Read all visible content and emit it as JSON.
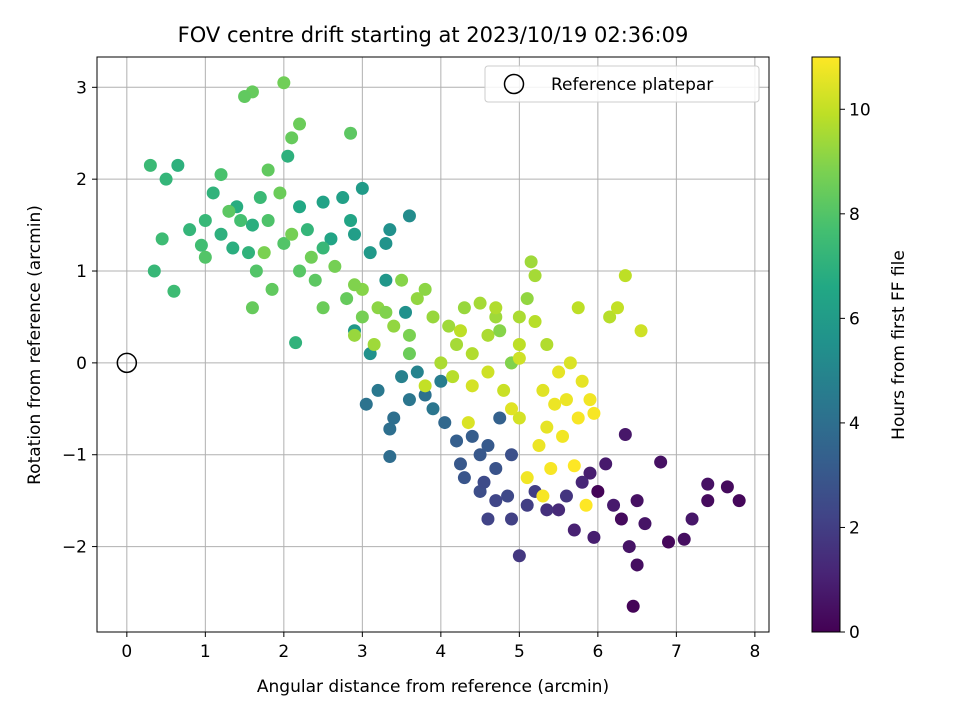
{
  "chart_data": {
    "type": "scatter",
    "title": "FOV centre drift starting at 2023/10/19 02:36:09",
    "xlabel": "Angular distance from reference (arcmin)",
    "ylabel": "Rotation from reference (arcmin)",
    "xlim": [
      -0.38,
      8.18
    ],
    "ylim": [
      -2.93,
      3.33
    ],
    "x_ticks": [
      0,
      1,
      2,
      3,
      4,
      5,
      6,
      7,
      8
    ],
    "y_ticks": [
      -2,
      -1,
      0,
      1,
      2,
      3
    ],
    "grid": true,
    "legend": {
      "placement": "upper right",
      "entries": [
        "Reference platepar"
      ]
    },
    "reference_point": {
      "x": 0,
      "y": 0,
      "marker": "open-circle",
      "color": "#000000"
    },
    "colorbar": {
      "label": "Hours from first FF file",
      "colormap": "viridis",
      "range": [
        0,
        11
      ],
      "ticks": [
        0,
        2,
        4,
        6,
        8,
        10
      ]
    },
    "series": [
      {
        "color_value": "hours",
        "points": [
          [
            6.0,
            -1.4,
            0.1
          ],
          [
            6.3,
            -1.7,
            0.3
          ],
          [
            6.5,
            -1.5,
            0.5
          ],
          [
            6.9,
            -1.95,
            0.2
          ],
          [
            7.1,
            -1.92,
            0.4
          ],
          [
            7.4,
            -1.5,
            0.3
          ],
          [
            7.8,
            -1.5,
            0.2
          ],
          [
            6.45,
            -2.65,
            0.1
          ],
          [
            6.4,
            -2.0,
            0.6
          ],
          [
            6.5,
            -2.2,
            0.4
          ],
          [
            6.8,
            -1.08,
            0.5
          ],
          [
            6.35,
            -0.78,
            0.7
          ],
          [
            5.9,
            -1.2,
            0.9
          ],
          [
            6.1,
            -1.1,
            0.8
          ],
          [
            6.6,
            -1.75,
            0.6
          ],
          [
            7.2,
            -1.7,
            0.7
          ],
          [
            7.65,
            -1.35,
            0.3
          ],
          [
            7.4,
            -1.32,
            0.5
          ],
          [
            5.7,
            -1.82,
            1.0
          ],
          [
            5.95,
            -1.9,
            0.9
          ],
          [
            6.2,
            -1.55,
            0.8
          ],
          [
            5.5,
            -1.6,
            1.3
          ],
          [
            5.8,
            -1.3,
            1.2
          ],
          [
            5.35,
            -1.6,
            1.5
          ],
          [
            5.6,
            -1.45,
            1.7
          ],
          [
            5.0,
            -2.1,
            1.8
          ],
          [
            4.9,
            -1.7,
            2.1
          ],
          [
            4.7,
            -1.5,
            2.3
          ],
          [
            4.5,
            -1.4,
            2.6
          ],
          [
            4.6,
            -1.7,
            2.2
          ],
          [
            4.85,
            -1.45,
            2.4
          ],
          [
            5.2,
            -1.4,
            2.0
          ],
          [
            4.3,
            -1.25,
            2.9
          ],
          [
            4.5,
            -1.0,
            3.0
          ],
          [
            4.2,
            -0.85,
            3.3
          ],
          [
            4.7,
            -1.15,
            2.8
          ],
          [
            4.9,
            -1.0,
            2.7
          ],
          [
            4.4,
            -0.8,
            3.2
          ],
          [
            4.75,
            -0.6,
            3.4
          ],
          [
            4.05,
            -0.65,
            3.7
          ],
          [
            3.8,
            -0.35,
            4.1
          ],
          [
            3.6,
            -0.4,
            4.3
          ],
          [
            3.4,
            -0.6,
            4.0
          ],
          [
            3.2,
            -0.3,
            4.4
          ],
          [
            3.05,
            -0.45,
            4.2
          ],
          [
            3.35,
            -1.02,
            3.9
          ],
          [
            3.35,
            -0.72,
            4.0
          ],
          [
            3.9,
            -0.5,
            4.3
          ],
          [
            4.0,
            -0.2,
            4.6
          ],
          [
            3.5,
            -0.15,
            4.8
          ],
          [
            3.7,
            -0.1,
            4.9
          ],
          [
            4.6,
            -0.9,
            3.1
          ],
          [
            4.25,
            -1.1,
            3.0
          ],
          [
            5.1,
            -1.55,
            2.0
          ],
          [
            4.55,
            -1.3,
            2.5
          ],
          [
            3.3,
            1.3,
            5.6
          ],
          [
            3.35,
            1.45,
            5.5
          ],
          [
            3.6,
            1.6,
            5.3
          ],
          [
            3.0,
            1.9,
            6.0
          ],
          [
            2.75,
            1.8,
            6.2
          ],
          [
            2.5,
            1.75,
            6.3
          ],
          [
            2.85,
            1.55,
            6.4
          ],
          [
            3.1,
            1.2,
            5.9
          ],
          [
            2.9,
            1.4,
            6.1
          ],
          [
            3.3,
            0.9,
            5.8
          ],
          [
            3.55,
            0.55,
            5.5
          ],
          [
            2.9,
            0.35,
            5.9
          ],
          [
            3.1,
            0.1,
            5.5
          ],
          [
            2.6,
            1.35,
            6.4
          ],
          [
            2.2,
            1.7,
            6.6
          ],
          [
            2.05,
            2.25,
            7.0
          ],
          [
            1.6,
            1.5,
            6.9
          ],
          [
            1.4,
            1.7,
            6.8
          ],
          [
            1.2,
            1.4,
            7.0
          ],
          [
            1.35,
            1.25,
            6.9
          ],
          [
            1.55,
            1.2,
            7.1
          ],
          [
            1.0,
            1.55,
            7.3
          ],
          [
            1.1,
            1.85,
            7.1
          ],
          [
            0.8,
            1.45,
            7.2
          ],
          [
            0.65,
            2.15,
            7.0
          ],
          [
            0.5,
            2.0,
            7.2
          ],
          [
            0.3,
            2.15,
            7.4
          ],
          [
            0.45,
            1.35,
            7.5
          ],
          [
            0.6,
            0.78,
            7.5
          ],
          [
            0.35,
            1.0,
            7.3
          ],
          [
            0.95,
            1.28,
            7.6
          ],
          [
            1.7,
            1.8,
            7.4
          ],
          [
            2.3,
            1.45,
            7.2
          ],
          [
            2.5,
            1.25,
            7.3
          ],
          [
            2.15,
            0.22,
            7.1
          ],
          [
            1.45,
            1.55,
            7.7
          ],
          [
            1.2,
            2.05,
            7.8
          ],
          [
            1.8,
            1.55,
            7.9
          ],
          [
            2.0,
            1.3,
            8.0
          ],
          [
            1.65,
            1.0,
            8.0
          ],
          [
            2.2,
            1.0,
            8.1
          ],
          [
            2.4,
            0.9,
            8.2
          ],
          [
            1.6,
            2.95,
            8.4
          ],
          [
            1.5,
            2.9,
            8.3
          ],
          [
            2.0,
            3.05,
            8.6
          ],
          [
            2.2,
            2.6,
            8.5
          ],
          [
            2.1,
            2.45,
            8.4
          ],
          [
            2.85,
            2.5,
            8.2
          ],
          [
            1.8,
            2.1,
            8.3
          ],
          [
            1.95,
            1.85,
            8.5
          ],
          [
            1.3,
            1.65,
            8.2
          ],
          [
            1.0,
            1.15,
            8.0
          ],
          [
            1.85,
            0.8,
            8.3
          ],
          [
            2.5,
            0.6,
            8.5
          ],
          [
            2.8,
            0.7,
            8.4
          ],
          [
            2.65,
            1.05,
            8.7
          ],
          [
            2.35,
            1.15,
            8.6
          ],
          [
            1.6,
            0.6,
            8.4
          ],
          [
            2.1,
            1.4,
            8.7
          ],
          [
            1.75,
            1.2,
            8.8
          ],
          [
            3.0,
            0.8,
            9.0
          ],
          [
            3.2,
            0.6,
            9.1
          ],
          [
            2.9,
            0.3,
            9.3
          ],
          [
            3.4,
            0.4,
            9.2
          ],
          [
            3.15,
            0.2,
            9.4
          ],
          [
            3.5,
            0.9,
            9.0
          ],
          [
            3.7,
            0.7,
            9.2
          ],
          [
            3.9,
            0.5,
            9.3
          ],
          [
            4.1,
            0.4,
            9.4
          ],
          [
            3.8,
            0.8,
            9.1
          ],
          [
            4.3,
            0.6,
            9.3
          ],
          [
            4.5,
            0.65,
            9.5
          ],
          [
            4.6,
            0.3,
            9.6
          ],
          [
            4.2,
            0.2,
            9.5
          ],
          [
            4.4,
            0.1,
            9.7
          ],
          [
            4.15,
            -0.15,
            9.8
          ],
          [
            4.0,
            0.0,
            9.6
          ],
          [
            4.7,
            0.5,
            9.4
          ],
          [
            5.0,
            0.5,
            9.6
          ],
          [
            5.15,
            1.1,
            9.4
          ],
          [
            5.2,
            0.95,
            9.5
          ],
          [
            5.35,
            0.2,
            9.7
          ],
          [
            5.0,
            0.2,
            9.9
          ],
          [
            4.9,
            0.0,
            10.0
          ],
          [
            4.8,
            -0.3,
            10.1
          ],
          [
            4.6,
            -0.1,
            10.2
          ],
          [
            4.4,
            -0.25,
            10.3
          ],
          [
            4.35,
            -0.65,
            10.4
          ],
          [
            5.0,
            -0.6,
            10.3
          ],
          [
            5.3,
            -0.3,
            10.5
          ],
          [
            5.5,
            -0.1,
            10.6
          ],
          [
            5.6,
            -0.4,
            10.7
          ],
          [
            5.8,
            -0.2,
            10.6
          ],
          [
            5.9,
            -0.4,
            10.8
          ],
          [
            5.95,
            -0.55,
            10.9
          ],
          [
            5.75,
            -0.6,
            10.9
          ],
          [
            5.55,
            -0.8,
            10.8
          ],
          [
            5.25,
            -0.9,
            10.7
          ],
          [
            5.4,
            -1.15,
            10.9
          ],
          [
            5.1,
            -1.25,
            10.8
          ],
          [
            5.3,
            -1.45,
            10.9
          ],
          [
            5.7,
            -1.12,
            11.0
          ],
          [
            5.85,
            -1.55,
            11.0
          ],
          [
            5.35,
            -0.7,
            10.6
          ],
          [
            5.65,
            0.0,
            10.4
          ],
          [
            5.75,
            0.6,
            9.9
          ],
          [
            6.15,
            0.5,
            9.8
          ],
          [
            6.25,
            0.6,
            10.0
          ],
          [
            6.35,
            0.95,
            9.9
          ],
          [
            6.55,
            0.35,
            10.2
          ],
          [
            5.1,
            0.7,
            9.2
          ],
          [
            4.75,
            0.35,
            9.0
          ],
          [
            4.9,
            0.0,
            8.9
          ],
          [
            3.6,
            0.3,
            8.8
          ],
          [
            3.3,
            0.55,
            8.9
          ],
          [
            3.0,
            0.5,
            8.7
          ],
          [
            2.9,
            0.85,
            8.9
          ],
          [
            3.6,
            0.1,
            8.5
          ],
          [
            3.8,
            -0.25,
            10.0
          ],
          [
            5.2,
            0.45,
            9.8
          ],
          [
            4.7,
            0.6,
            9.7
          ],
          [
            4.25,
            0.35,
            9.9
          ],
          [
            4.9,
            -0.5,
            10.5
          ],
          [
            5.45,
            -0.45,
            10.7
          ],
          [
            5.0,
            0.05,
            10.2
          ]
        ]
      }
    ]
  }
}
